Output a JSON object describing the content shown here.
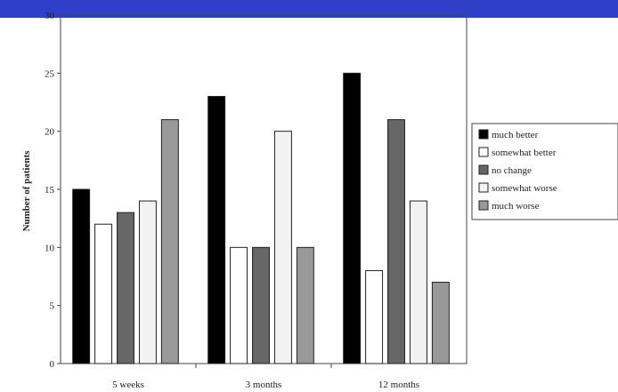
{
  "colors": {
    "header_band": "#2f3fc8",
    "series": [
      "#000000",
      "#ffffff",
      "#666666",
      "#f2f2f2",
      "#999999"
    ],
    "bar_stroke": "#222222",
    "axis": "#444444"
  },
  "chart_data": {
    "type": "bar",
    "title": "",
    "xlabel": "",
    "ylabel": "Number of patients",
    "ylim": [
      0,
      30
    ],
    "yticks": [
      0,
      5,
      10,
      15,
      20,
      25,
      30
    ],
    "categories": [
      "5 weeks",
      "3 months",
      "12 months"
    ],
    "series": [
      {
        "name": "much better",
        "values": [
          15,
          23,
          25
        ]
      },
      {
        "name": "somewhat better",
        "values": [
          12,
          10,
          8
        ]
      },
      {
        "name": "no change",
        "values": [
          13,
          10,
          21
        ]
      },
      {
        "name": "somewhat worse",
        "values": [
          14,
          20,
          14
        ]
      },
      {
        "name": "much worse",
        "values": [
          21,
          10,
          7
        ]
      }
    ],
    "legend_position": "right",
    "grid": false
  }
}
